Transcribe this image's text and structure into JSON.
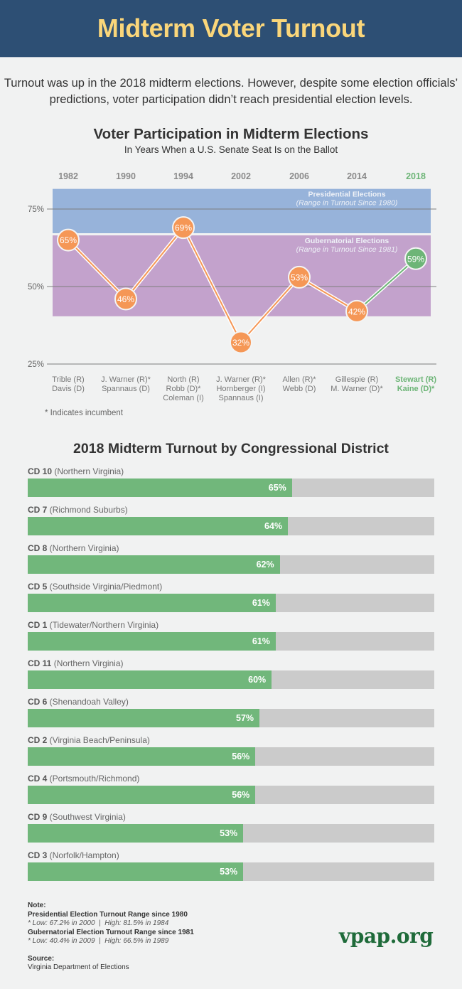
{
  "header": {
    "title": "Midterm Voter Turnout"
  },
  "intro": "Turnout was up in the 2018 midterm elections. However, despite some election officials’ predictions, voter participation didn’t reach presidential election levels.",
  "chart_data": [
    {
      "type": "line",
      "title": "Voter Participation in Midterm Elections",
      "subtitle": "In Years When a U.S. Senate Seat Is on the Ballot",
      "xlabel": "",
      "ylabel": "",
      "categories": [
        "1982",
        "1990",
        "1994",
        "2002",
        "2006",
        "2014",
        "2018"
      ],
      "series": [
        {
          "name": "Turnout",
          "values": [
            65,
            46,
            69,
            32,
            53,
            42,
            59
          ]
        }
      ],
      "value_labels": [
        "65%",
        "46%",
        "69%",
        "32%",
        "53%",
        "42%",
        "59%"
      ],
      "highlight_index": 6,
      "yticks": [
        75,
        50,
        25
      ],
      "ytick_labels": [
        "75%",
        "50%",
        "25%"
      ],
      "ylim": [
        25,
        82
      ],
      "grid": true,
      "bands": [
        {
          "name": "Presidential Elections",
          "note": "(Range in Turnout Since 1980)",
          "low": 67.2,
          "high": 81.5
        },
        {
          "name": "Gubernatorial Elections",
          "note": "(Range in Turnout Since 1981)",
          "low": 40.4,
          "high": 66.5
        }
      ],
      "candidates": [
        [
          "Trible (R)",
          "Davis (D)"
        ],
        [
          "J. Warner (R)*",
          "Spannaus (D)"
        ],
        [
          "North (R)",
          "Robb (D)*",
          "Coleman (I)"
        ],
        [
          "J. Warner (R)*",
          "Hornberger (I)",
          "Spannaus (I)"
        ],
        [
          "Allen (R)*",
          "Webb (D)"
        ],
        [
          "Gillespie (R)",
          "M. Warner (D)*"
        ],
        [
          "Stewart (R)",
          "Kaine (D)*"
        ]
      ],
      "footnote": "* Indicates incumbent"
    },
    {
      "type": "bar",
      "orientation": "horizontal",
      "title": "2018 Midterm Turnout by Congressional District",
      "xlim": [
        0,
        100
      ],
      "categories": [
        "CD 10",
        "CD 7",
        "CD 8",
        "CD 5",
        "CD 1",
        "CD 11",
        "CD 6",
        "CD 2",
        "CD 4",
        "CD 9",
        "CD 3"
      ],
      "regions": [
        "(Northern Virginia)",
        "(Richmond Suburbs)",
        "(Northern Virginia)",
        "(Southside Virginia/Piedmont)",
        "(Tidewater/Northern Virginia)",
        "(Northern Virginia)",
        "(Shenandoah Valley)",
        "(Virginia Beach/Peninsula)",
        "(Portsmouth/Richmond)",
        "(Southwest Virginia)",
        "(Norfolk/Hampton)"
      ],
      "values": [
        65,
        64,
        62,
        61,
        61,
        60,
        57,
        56,
        56,
        53,
        53
      ],
      "value_labels": [
        "65%",
        "64%",
        "62%",
        "61%",
        "61%",
        "60%",
        "57%",
        "56%",
        "56%",
        "53%",
        "53%"
      ]
    }
  ],
  "colors": {
    "header_bg": "#2d4f74",
    "title": "#fad67a",
    "presidential_band": "#97b3da",
    "gubernatorial_band": "#c3a2cc",
    "line_orange": "#f59756",
    "highlight_green": "#6db577",
    "bar_fill": "#71b77b",
    "bar_track": "#cbcbcb",
    "brand": "#1f6b3a"
  },
  "notes": {
    "heading": "Note:",
    "pres_heading": "Presidential Election Turnout Range since 1980",
    "pres_detail": "* Low: 67.2% in 2000  |  High: 81.5% in 1984",
    "gub_heading": "Gubernatorial Election Turnout Range since 1981",
    "gub_detail": "* Low: 40.4% in 2009  |  High: 66.5% in 1989",
    "source_heading": "Source:",
    "source": "Virginia Department of Elections"
  },
  "brand": "vpap.org"
}
